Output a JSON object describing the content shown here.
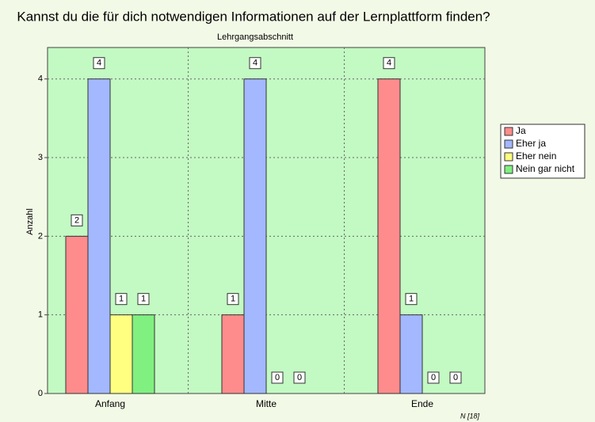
{
  "chart_data": {
    "type": "bar",
    "title": "Kannst du die für dich notwendigen Informationen auf der Lernplattform finden?",
    "subtitle": "Lehrgangsabschnitt",
    "y_label": "Anzahl",
    "footnote": "N [18]",
    "categories": [
      "Anfang",
      "Mitte",
      "Ende"
    ],
    "series": [
      {
        "name": "Ja",
        "color": "#ff8c8c",
        "values": [
          2,
          1,
          4
        ]
      },
      {
        "name": "Eher ja",
        "color": "#a3b8ff",
        "values": [
          4,
          4,
          1
        ]
      },
      {
        "name": "Eher nein",
        "color": "#ffff80",
        "values": [
          1,
          0,
          0
        ]
      },
      {
        "name": "Nein gar nicht",
        "color": "#80f080",
        "values": [
          1,
          0,
          0
        ]
      }
    ],
    "ylim": [
      0,
      4.4
    ],
    "yticks": [
      0,
      1,
      2,
      3,
      4
    ],
    "grid": true,
    "legend": "right"
  }
}
